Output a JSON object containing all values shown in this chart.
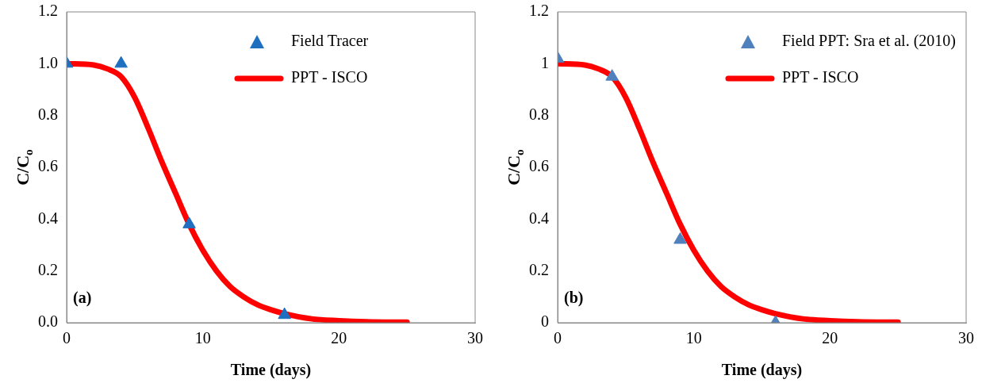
{
  "chart_data": [
    {
      "type": "scatter",
      "xlabel": "Time (days)",
      "ylabel": "C/C$_{o}$",
      "xlim": [
        0,
        30
      ],
      "xticks": [
        0,
        10,
        20,
        30
      ],
      "ylim": [
        0,
        1.2
      ],
      "yticks": [
        {
          "value": 0,
          "label": "0.0"
        },
        {
          "value": 0.2,
          "label": "0.2"
        },
        {
          "value": 0.4,
          "label": "0.4"
        },
        {
          "value": 0.6,
          "label": "0.6"
        },
        {
          "value": 0.8,
          "label": "0.8"
        },
        {
          "value": 1,
          "label": "1.0"
        },
        {
          "value": 1.2,
          "label": "1.2"
        }
      ],
      "grid": false,
      "legend": "top right",
      "annotations": [
        "(a)"
      ],
      "series": [
        {
          "name": "Field Tracer",
          "marker": "triangle",
          "color": "#1f6fc0",
          "x": [
            0,
            4,
            9,
            16
          ],
          "values": [
            1.0,
            1.0,
            0.38,
            0.03
          ]
        },
        {
          "name": "PPT - ISCO",
          "type": "line",
          "marker": "none",
          "color": "#ff0000",
          "x": [
            0,
            2,
            3,
            4,
            5,
            6,
            7,
            8,
            9,
            10,
            11,
            12,
            13,
            14,
            15,
            16,
            18,
            20,
            22,
            25
          ],
          "values": [
            1.0,
            0.995,
            0.98,
            0.95,
            0.87,
            0.75,
            0.62,
            0.5,
            0.38,
            0.28,
            0.2,
            0.14,
            0.1,
            0.07,
            0.05,
            0.035,
            0.015,
            0.008,
            0.004,
            0.002
          ]
        }
      ]
    },
    {
      "type": "scatter",
      "xlabel": "Time (days)",
      "ylabel": "C/C$_{o}$",
      "xlim": [
        0,
        30
      ],
      "xticks": [
        0,
        10,
        20,
        30
      ],
      "ylim": [
        0,
        1.2
      ],
      "yticks": [
        0,
        0.2,
        0.4,
        0.6,
        0.8,
        1,
        1.2
      ],
      "grid": false,
      "legend": "top right",
      "annotations": [
        "(b)"
      ],
      "series": [
        {
          "name": "Field PPT: Sra et al. (2010)",
          "marker": "triangle",
          "color": "#4f81bd",
          "x": [
            0,
            4,
            9,
            16
          ],
          "values": [
            1.02,
            0.95,
            0.32,
            0.0
          ]
        },
        {
          "name": "PPT - ISCO",
          "type": "line",
          "marker": "none",
          "color": "#ff0000",
          "x": [
            0,
            2,
            3,
            4,
            5,
            6,
            7,
            8,
            9,
            10,
            11,
            12,
            13,
            14,
            15,
            16,
            18,
            20,
            22,
            25
          ],
          "values": [
            1.0,
            0.995,
            0.98,
            0.95,
            0.87,
            0.75,
            0.62,
            0.5,
            0.38,
            0.28,
            0.2,
            0.14,
            0.1,
            0.07,
            0.05,
            0.035,
            0.015,
            0.008,
            0.004,
            0.002
          ]
        }
      ]
    }
  ]
}
